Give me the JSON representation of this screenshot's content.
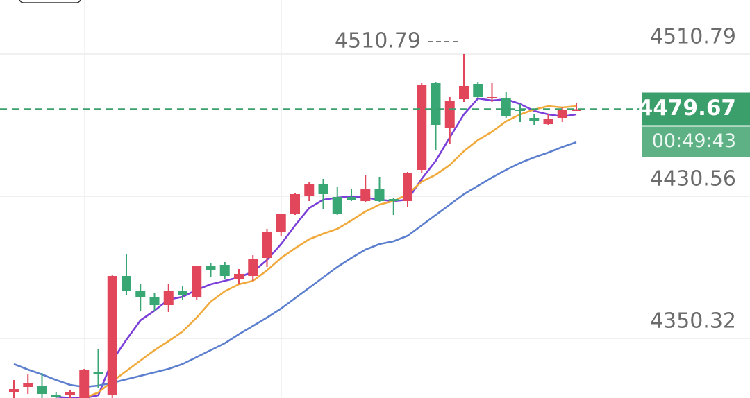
{
  "chart_data": {
    "type": "candlestick",
    "categories": [
      null,
      null,
      null,
      null,
      null,
      null,
      null,
      null,
      null,
      null,
      null,
      null,
      null,
      null,
      null,
      null,
      null,
      null,
      null,
      null,
      null,
      null,
      null,
      null,
      null,
      null,
      null,
      null,
      null,
      null,
      null,
      null,
      null,
      null,
      null,
      null,
      null,
      null,
      null,
      null,
      null
    ],
    "open": [
      4319.79,
      4322.92,
      4323.7,
      4318.22,
      4318.22,
      4316.66,
      4331.14,
      4318.22,
      4385.54,
      4376.93,
      4373.41,
      4369.1,
      4376.93,
      4373.8,
      4391.02,
      4391.81,
      4383.98,
      4385.54,
      4395.72,
      4410.2,
      4420.77,
      4430.55,
      4437.6,
      4430.16,
      4430.16,
      4427.81,
      4434.86,
      4428.99,
      4427.81,
      4445.43,
      4494.35,
      4468.91,
      4485.35,
      4493.96,
      4485.74,
      4486.13,
      4479.48,
      4474.78,
      4471.26,
      4474.78,
      4478.7
    ],
    "high": [
      4326.83,
      4329.96,
      4330.75,
      4320.18,
      4321.35,
      4333.1,
      4344.45,
      4386.32,
      4397.68,
      4380.85,
      4376.15,
      4380.85,
      4380.06,
      4391.41,
      4392.59,
      4393.37,
      4389.46,
      4397.28,
      4412.16,
      4420.77,
      4432.51,
      4438.77,
      4440.34,
      4435.64,
      4434.86,
      4442.69,
      4441.51,
      4429.77,
      4444.25,
      4494.35,
      4495.13,
      4486.52,
      4510.79,
      4495.13,
      4494.35,
      4489.66,
      4482.61,
      4476.74,
      4476.74,
      4480.65,
      4483.39
    ],
    "low": [
      4316.66,
      4319.0,
      4316.66,
      4316.66,
      4316.66,
      4316.66,
      4322.14,
      4316.66,
      4374.97,
      4365.97,
      4365.97,
      4365.19,
      4372.24,
      4372.24,
      4384.76,
      4383.98,
      4380.85,
      4382.8,
      4390.63,
      4408.24,
      4419.99,
      4427.81,
      4423.12,
      4419.99,
      4427.81,
      4427.03,
      4427.03,
      4419.99,
      4424.68,
      4443.47,
      4456.78,
      4459.91,
      4483.78,
      4485.74,
      4483.78,
      4474.78,
      4472.43,
      4470.87,
      4470.87,
      4472.43,
      4478.7
    ],
    "close": [
      4321.74,
      4324.88,
      4319.0,
      4317.05,
      4319.79,
      4332.31,
      4329.96,
      4385.54,
      4376.93,
      4373.8,
      4369.1,
      4376.93,
      4374.97,
      4391.02,
      4388.67,
      4385.54,
      4386.72,
      4394.94,
      4410.59,
      4420.38,
      4431.73,
      4437.6,
      4431.73,
      4420.77,
      4428.6,
      4434.86,
      4427.81,
      4427.81,
      4443.86,
      4493.57,
      4470.87,
      4484.57,
      4492.79,
      4486.52,
      4486.52,
      4475.56,
      4478.7,
      4472.82,
      4474.0,
      4479.48,
      4479.67
    ],
    "up_color": "#e2465a",
    "down_color": "#38a774",
    "lines": [
      {
        "color": "#7a3fd8",
        "values": [
          null,
          null,
          null,
          4317.44,
          4316.66,
          4316.66,
          4318.22,
          4337.79,
          4349.53,
          4360.49,
          4365.97,
          4372.24,
          4373.8,
          4377.71,
          4380.85,
          4382.8,
          4384.76,
          4387.89,
          4394.54,
          4403.55,
          4414.11,
          4423.9,
          4428.6,
          4429.77,
          4430.55,
          4429.77,
          4428.6,
          4427.81,
          4428.6,
          4440.34,
          4450.52,
          4463.82,
          4476.74,
          4485.74,
          4484.57,
          4485.35,
          4482.61,
          4478.7,
          4476.74,
          4475.56,
          4476.74
        ]
      },
      {
        "color": "#f0a93a",
        "values": [
          null,
          null,
          null,
          null,
          null,
          4316.66,
          4319.79,
          4326.05,
          4331.92,
          4337.79,
          4343.66,
          4348.75,
          4354.23,
          4362.06,
          4371.06,
          4376.93,
          4380.85,
          4382.8,
          4388.67,
          4395.72,
          4401.2,
          4406.29,
          4409.42,
          4412.16,
          4416.85,
          4421.94,
          4425.86,
          4427.81,
          4431.73,
          4438.77,
          4442.69,
          4448.17,
          4455.99,
          4462.26,
          4466.95,
          4472.82,
          4476.74,
          4479.48,
          4481.44,
          4480.65,
          4481.44
        ]
      },
      {
        "color": "#5b7fce",
        "values": [
          4335.83,
          4332.7,
          4329.96,
          4326.83,
          4324.09,
          4322.92,
          4323.7,
          4325.27,
          4327.22,
          4329.18,
          4331.14,
          4333.1,
          4335.83,
          4339.75,
          4343.66,
          4347.58,
          4352.67,
          4357.36,
          4362.06,
          4367.15,
          4373.02,
          4378.89,
          4384.76,
          4390.63,
          4395.72,
          4400.42,
          4403.55,
          4405.11,
          4408.24,
          4414.11,
          4419.99,
          4425.86,
          4431.73,
          4436.42,
          4441.12,
          4445.43,
          4449.34,
          4452.47,
          4455.21,
          4458.34,
          4461.08
        ]
      }
    ],
    "ylim": [
      4316.66,
      4541.32
    ],
    "yticks": [
      4350.32,
      4430.56,
      4510.79
    ],
    "grid": true,
    "high_marker": 4510.79,
    "last_price": 4479.67,
    "last_price_color": "#3a9f6a",
    "countdown": "00:49:43"
  }
}
